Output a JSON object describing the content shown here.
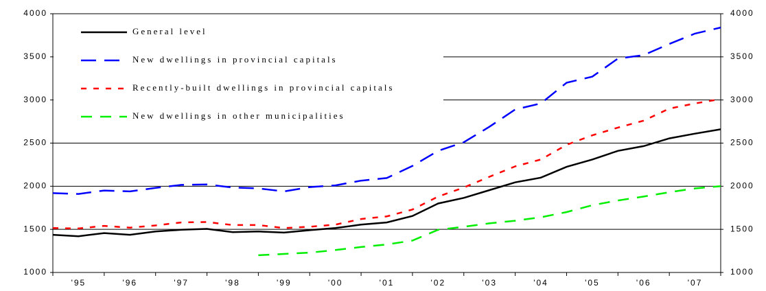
{
  "chart_data": {
    "type": "line",
    "categories": [
      null,
      "'95",
      null,
      "'96",
      null,
      "'97",
      null,
      "'98",
      null,
      "'99",
      null,
      "'00",
      null,
      "'01",
      null,
      "'02",
      null,
      "'03",
      null,
      "'04",
      null,
      "'05",
      null,
      "'06",
      null,
      "'07",
      null
    ],
    "series": [
      {
        "name": "General level",
        "color": "#000000",
        "dash": "none",
        "values": [
          1437,
          1420,
          1457,
          1437,
          1475,
          1495,
          1505,
          1467,
          1475,
          1462,
          1490,
          1515,
          1555,
          1580,
          1655,
          1800,
          1865,
          1955,
          2045,
          2100,
          2225,
          2310,
          2410,
          2465,
          2555,
          2610,
          2660
        ]
      },
      {
        "name": "New dwellings in provincial capitals",
        "color": "#0000ff",
        "dash": "22,12",
        "values": [
          1920,
          1910,
          1950,
          1940,
          1980,
          2015,
          2020,
          1985,
          1975,
          1940,
          1990,
          2010,
          2065,
          2095,
          2235,
          2410,
          2510,
          2690,
          2890,
          2960,
          3200,
          3270,
          3480,
          3520,
          3650,
          3770,
          3840
        ]
      },
      {
        "name": "Recently-built dwellings in provincial capitals",
        "color": "#ff0000",
        "dash": "8,10",
        "values": [
          1515,
          1510,
          1540,
          1520,
          1545,
          1580,
          1585,
          1550,
          1550,
          1515,
          1530,
          1555,
          1620,
          1650,
          1730,
          1880,
          1985,
          2110,
          2230,
          2310,
          2480,
          2590,
          2680,
          2760,
          2900,
          2960,
          3010
        ]
      },
      {
        "name": "New dwellings in other municipalities",
        "color": "#00ee00",
        "dash": "16,12",
        "values": [
          null,
          null,
          null,
          null,
          null,
          null,
          null,
          null,
          1200,
          1215,
          1230,
          1260,
          1295,
          1325,
          1370,
          1495,
          1530,
          1570,
          1600,
          1640,
          1700,
          1780,
          1835,
          1880,
          1930,
          1975,
          2000
        ]
      }
    ],
    "ylim": [
      1000,
      4000
    ],
    "yticks": [
      1000,
      1500,
      2000,
      2500,
      3000,
      3500,
      4000
    ],
    "y2lim": [
      1000,
      4000
    ],
    "y2ticks": [
      1000,
      1500,
      2000,
      2500,
      3000,
      3500,
      4000
    ],
    "grid": true
  }
}
